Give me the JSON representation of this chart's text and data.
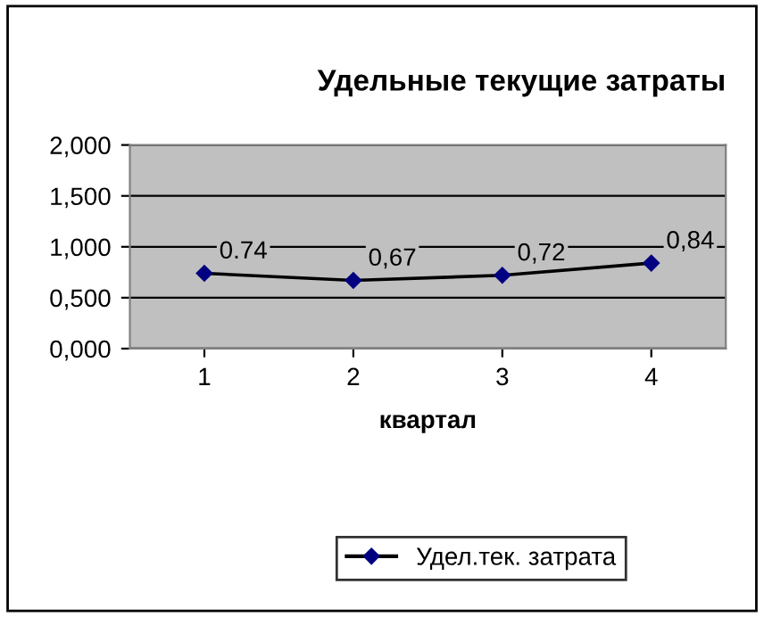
{
  "chart_data": {
    "type": "line",
    "title": "Удельные текущие затраты",
    "xlabel": "квартал",
    "categories": [
      "1",
      "2",
      "3",
      "4"
    ],
    "series": [
      {
        "name": "Удел.тек. затрата",
        "color": "#000080",
        "values": [
          0.74,
          0.67,
          0.72,
          0.84
        ],
        "value_labels": [
          "0.74",
          "0,67",
          "0,72",
          "0,84"
        ]
      }
    ],
    "ylim": [
      0,
      2
    ],
    "yticks": [
      {
        "value": 0,
        "label": "0,000"
      },
      {
        "value": 0.5,
        "label": "0,500"
      },
      {
        "value": 1,
        "label": "1,000"
      },
      {
        "value": 1.5,
        "label": "1,500"
      },
      {
        "value": 2,
        "label": "2,000"
      }
    ],
    "grid": "y",
    "legend": "bottom",
    "marker": "diamond",
    "line_style": "solid"
  }
}
